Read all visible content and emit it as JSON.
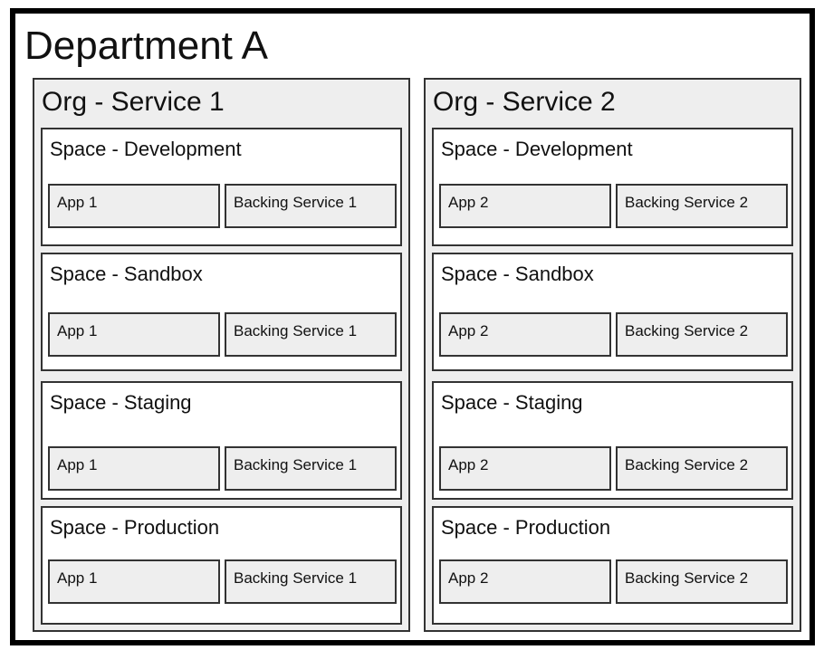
{
  "department": {
    "title": "Department A"
  },
  "orgs": [
    {
      "title": "Org - Service 1",
      "spaces": [
        {
          "title": "Space - Development",
          "app": "App 1",
          "service": "Backing Service 1"
        },
        {
          "title": "Space - Sandbox",
          "app": "App 1",
          "service": "Backing Service 1"
        },
        {
          "title": "Space - Staging",
          "app": "App 1",
          "service": "Backing Service 1"
        },
        {
          "title": "Space - Production",
          "app": "App 1",
          "service": "Backing Service 1"
        }
      ]
    },
    {
      "title": "Org - Service 2",
      "spaces": [
        {
          "title": "Space - Development",
          "app": "App 2",
          "service": "Backing Service 2"
        },
        {
          "title": "Space - Sandbox",
          "app": "App 2",
          "service": "Backing Service 2"
        },
        {
          "title": "Space - Staging",
          "app": "App 2",
          "service": "Backing Service 2"
        },
        {
          "title": "Space - Production",
          "app": "App 2",
          "service": "Backing Service 2"
        }
      ]
    }
  ]
}
